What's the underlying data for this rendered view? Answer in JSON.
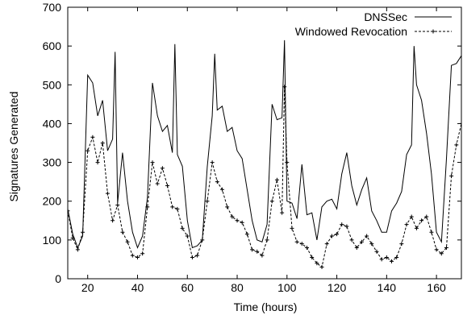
{
  "chart_data": {
    "type": "line",
    "title": "",
    "xlabel": "Time (hours)",
    "ylabel": "Signatures Generated",
    "xlim": [
      12,
      170
    ],
    "ylim": [
      0,
      700
    ],
    "xticks": [
      20,
      40,
      60,
      80,
      100,
      120,
      140,
      160
    ],
    "yticks": [
      0,
      100,
      200,
      300,
      400,
      500,
      600,
      700
    ],
    "grid": false,
    "legend_position": "top-right",
    "series": [
      {
        "name": "DNSSec",
        "style": "solid",
        "color": "#000000",
        "x": [
          12,
          14,
          16,
          18,
          20,
          22,
          24,
          26,
          28,
          30,
          31,
          32,
          34,
          36,
          38,
          40,
          42,
          44,
          46,
          48,
          50,
          52,
          54,
          55,
          56,
          58,
          60,
          62,
          64,
          66,
          68,
          70,
          71,
          72,
          74,
          76,
          78,
          80,
          82,
          84,
          86,
          88,
          90,
          92,
          94,
          96,
          98,
          99,
          100,
          102,
          104,
          106,
          108,
          110,
          112,
          114,
          116,
          118,
          120,
          122,
          124,
          126,
          128,
          130,
          132,
          134,
          136,
          138,
          140,
          142,
          144,
          146,
          148,
          150,
          151,
          152,
          154,
          156,
          158,
          160,
          162,
          164,
          166,
          168,
          170
        ],
        "values": [
          180,
          115,
          80,
          110,
          525,
          505,
          420,
          460,
          330,
          360,
          585,
          195,
          325,
          200,
          120,
          80,
          110,
          210,
          505,
          420,
          380,
          395,
          325,
          605,
          320,
          290,
          150,
          80,
          85,
          100,
          290,
          420,
          580,
          435,
          445,
          380,
          390,
          330,
          310,
          230,
          150,
          100,
          95,
          140,
          450,
          410,
          415,
          615,
          200,
          195,
          155,
          295,
          165,
          170,
          100,
          185,
          200,
          205,
          180,
          270,
          325,
          240,
          190,
          230,
          260,
          175,
          150,
          120,
          120,
          175,
          195,
          225,
          320,
          345,
          600,
          500,
          460,
          375,
          270,
          120,
          95,
          310,
          550,
          555,
          575
        ]
      },
      {
        "name": "Windowed Revocation",
        "style": "dashed",
        "color": "#000000",
        "x": [
          12,
          14,
          16,
          18,
          20,
          22,
          24,
          26,
          28,
          30,
          32,
          34,
          36,
          38,
          40,
          42,
          44,
          46,
          48,
          50,
          52,
          54,
          56,
          58,
          60,
          62,
          64,
          66,
          68,
          70,
          72,
          74,
          76,
          78,
          80,
          82,
          84,
          86,
          88,
          90,
          92,
          94,
          96,
          98,
          99,
          100,
          102,
          104,
          106,
          108,
          110,
          112,
          114,
          116,
          118,
          120,
          122,
          124,
          126,
          128,
          130,
          132,
          134,
          136,
          138,
          140,
          142,
          144,
          146,
          148,
          150,
          152,
          154,
          156,
          158,
          160,
          162,
          164,
          166,
          168,
          170
        ],
        "values": [
          175,
          105,
          75,
          120,
          330,
          365,
          300,
          350,
          220,
          150,
          190,
          120,
          95,
          60,
          55,
          65,
          185,
          300,
          245,
          285,
          240,
          185,
          180,
          130,
          110,
          55,
          60,
          100,
          200,
          300,
          250,
          230,
          185,
          160,
          150,
          145,
          115,
          75,
          70,
          60,
          100,
          200,
          255,
          170,
          495,
          300,
          130,
          95,
          90,
          80,
          55,
          40,
          30,
          90,
          110,
          115,
          140,
          135,
          100,
          80,
          95,
          110,
          90,
          70,
          50,
          55,
          45,
          55,
          90,
          140,
          160,
          130,
          150,
          160,
          120,
          75,
          65,
          80,
          265,
          345,
          400
        ]
      }
    ]
  }
}
